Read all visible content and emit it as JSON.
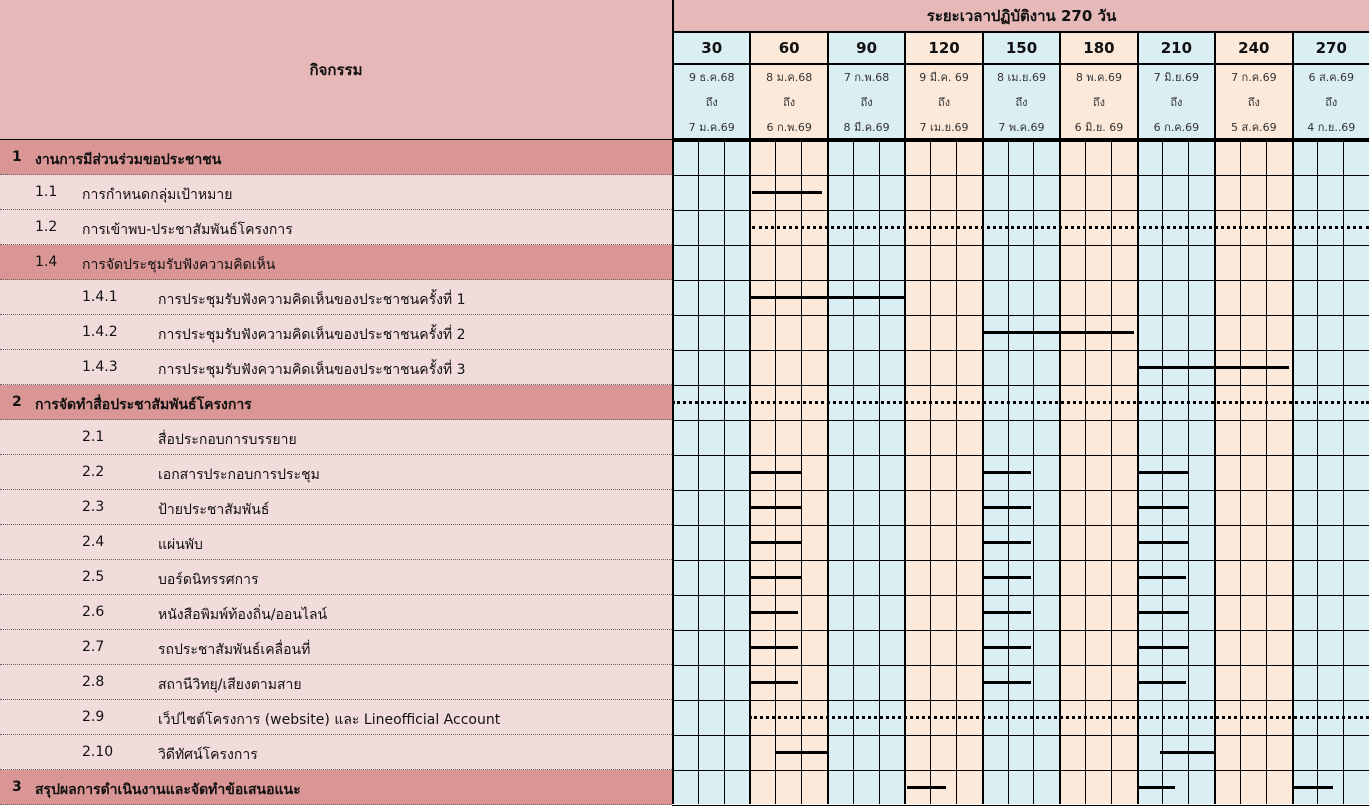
{
  "header": {
    "activity_label": "กิจกรรม",
    "duration_title": "ระยะเวลาปฏิบัติงาน 270 วัน",
    "periods": [
      {
        "day": "30",
        "from": "9 ธ.ค.68",
        "to_word": "ถึง",
        "to": "7 ม.ค.69",
        "color": "#daeef3"
      },
      {
        "day": "60",
        "from": "8 ม.ค.68",
        "to_word": "ถึง",
        "to": "6 ก.พ.69",
        "color": "#fde9d9"
      },
      {
        "day": "90",
        "from": "7 ก.พ.68",
        "to_word": "ถึง",
        "to": "8 มี.ค.69",
        "color": "#daeef3"
      },
      {
        "day": "120",
        "from": "9 มี.ค. 69",
        "to_word": "ถึง",
        "to": "7 เม.ย.69",
        "color": "#fde9d9"
      },
      {
        "day": "150",
        "from": "8 เม.ย.69",
        "to_word": "ถึง",
        "to": "7 พ.ค.69",
        "color": "#daeef3"
      },
      {
        "day": "180",
        "from": "8 พ.ค.69",
        "to_word": "ถึง",
        "to": "6 มิ.ย. 69",
        "color": "#fde9d9"
      },
      {
        "day": "210",
        "from": "7 มิ.ย.69",
        "to_word": "ถึง",
        "to": "6 ก.ค.69",
        "color": "#daeef3"
      },
      {
        "day": "240",
        "from": "7 ก.ค.69",
        "to_word": "ถึง",
        "to": "5 ส.ค.69",
        "color": "#fde9d9"
      },
      {
        "day": "270",
        "from": "6 ส.ค.69",
        "to_word": "ถึง",
        "to": "4 ก.ย..69",
        "color": "#daeef3"
      }
    ]
  },
  "rows": [
    {
      "num": "1",
      "label": "งานการมีส่วนร่วมขอประชาชน",
      "level": 0,
      "type": "cat",
      "bars": []
    },
    {
      "num": "1.1",
      "label": "การกำหนดกลุ่มเป้าหมาย",
      "level": 1,
      "type": "sub",
      "bars": [
        {
          "start": 31,
          "end": 58,
          "style": "solid"
        }
      ]
    },
    {
      "num": "1.2",
      "label": "การเข้าพบ-ประชาสัมพันธ์โครงการ",
      "level": 1,
      "type": "sub",
      "bars": [
        {
          "start": 31,
          "end": 270,
          "style": "dotted"
        }
      ]
    },
    {
      "num": "1.4",
      "label": "การจัดประชุมรับฟังความคิดเห็น",
      "level": 1,
      "type": "cat",
      "bars": []
    },
    {
      "num": "1.4.1",
      "label": "การประชุมรับฟังความคิดเห็นของประชาชนครั้งที่ 1",
      "level": 2,
      "type": "sub",
      "bars": [
        {
          "start": 30,
          "end": 90,
          "style": "solid"
        }
      ]
    },
    {
      "num": "1.4.2",
      "label": "การประชุมรับฟังความคิดเห็นของประชาชนครั้งที่ 2",
      "level": 2,
      "type": "sub",
      "bars": [
        {
          "start": 120,
          "end": 179,
          "style": "solid"
        }
      ]
    },
    {
      "num": "1.4.3",
      "label": "การประชุมรับฟังความคิดเห็นของประชาชนครั้งที่ 3",
      "level": 2,
      "type": "sub",
      "bars": [
        {
          "start": 180,
          "end": 239,
          "style": "solid"
        }
      ]
    },
    {
      "num": "2",
      "label": "การจัดทำสื่อประชาสัมพันธ์โครงการ",
      "level": 0,
      "type": "cat",
      "bars": [
        {
          "start": 0,
          "end": 270,
          "style": "dotted"
        }
      ]
    },
    {
      "num": "2.1",
      "label": "สื่อประกอบการบรรยาย",
      "level": 2,
      "type": "sub",
      "bars": []
    },
    {
      "num": "2.2",
      "label": "เอกสารประกอบการประชุม",
      "level": 2,
      "type": "sub",
      "bars": [
        {
          "start": 30,
          "end": 50,
          "style": "solid"
        },
        {
          "start": 120,
          "end": 139,
          "style": "solid"
        },
        {
          "start": 181,
          "end": 200,
          "style": "solid"
        }
      ]
    },
    {
      "num": "2.3",
      "label": "ป้ายประชาสัมพันธ์",
      "level": 2,
      "type": "sub",
      "bars": [
        {
          "start": 30,
          "end": 50,
          "style": "solid"
        },
        {
          "start": 120,
          "end": 139,
          "style": "solid"
        },
        {
          "start": 181,
          "end": 200,
          "style": "solid"
        }
      ]
    },
    {
      "num": "2.4",
      "label": "แผ่นพับ",
      "level": 2,
      "type": "sub",
      "bars": [
        {
          "start": 30,
          "end": 50,
          "style": "solid"
        },
        {
          "start": 120,
          "end": 139,
          "style": "solid"
        },
        {
          "start": 181,
          "end": 200,
          "style": "solid"
        }
      ]
    },
    {
      "num": "2.5",
      "label": "บอร์ดนิทรรศการ",
      "level": 2,
      "type": "sub",
      "bars": [
        {
          "start": 30,
          "end": 50,
          "style": "solid"
        },
        {
          "start": 120,
          "end": 139,
          "style": "solid"
        },
        {
          "start": 180,
          "end": 199,
          "style": "solid"
        }
      ]
    },
    {
      "num": "2.6",
      "label": "หนังสือพิมพ์ท้องถิ่น/ออนไลน์",
      "level": 2,
      "type": "sub",
      "bars": [
        {
          "start": 30,
          "end": 49,
          "style": "solid"
        },
        {
          "start": 120,
          "end": 139,
          "style": "solid"
        },
        {
          "start": 181,
          "end": 200,
          "style": "solid"
        }
      ]
    },
    {
      "num": "2.7",
      "label": "รถประชาสัมพันธ์เคลื่อนที่",
      "level": 2,
      "type": "sub",
      "bars": [
        {
          "start": 30,
          "end": 49,
          "style": "solid"
        },
        {
          "start": 120,
          "end": 139,
          "style": "solid"
        },
        {
          "start": 181,
          "end": 200,
          "style": "solid"
        }
      ]
    },
    {
      "num": "2.8",
      "label": "สถานีวิทยุ/เสียงตามสาย",
      "level": 2,
      "type": "sub",
      "bars": [
        {
          "start": 30,
          "end": 49,
          "style": "solid"
        },
        {
          "start": 120,
          "end": 139,
          "style": "solid"
        },
        {
          "start": 181,
          "end": 199,
          "style": "solid"
        }
      ]
    },
    {
      "num": "2.9",
      "label": "เว็ปไซต์โครงการ (website) และ Lineofficial Account",
      "level": 2,
      "type": "sub",
      "bars": [
        {
          "start": 30,
          "end": 270,
          "style": "dotted"
        }
      ]
    },
    {
      "num": "2.10",
      "label": "วิดีทัศน์โครงการ",
      "level": 2,
      "type": "sub",
      "bars": [
        {
          "start": 40,
          "end": 60,
          "style": "solid"
        },
        {
          "start": 189,
          "end": 210,
          "style": "solid"
        }
      ]
    },
    {
      "num": "3",
      "label": "สรุปผลการดำเนินงานและจัดทำข้อเสนอแนะ",
      "level": 0,
      "type": "cat",
      "bars": [
        {
          "start": 91,
          "end": 106,
          "style": "solid"
        },
        {
          "start": 180,
          "end": 195,
          "style": "solid"
        },
        {
          "start": 241,
          "end": 256,
          "style": "solid"
        }
      ]
    }
  ]
}
